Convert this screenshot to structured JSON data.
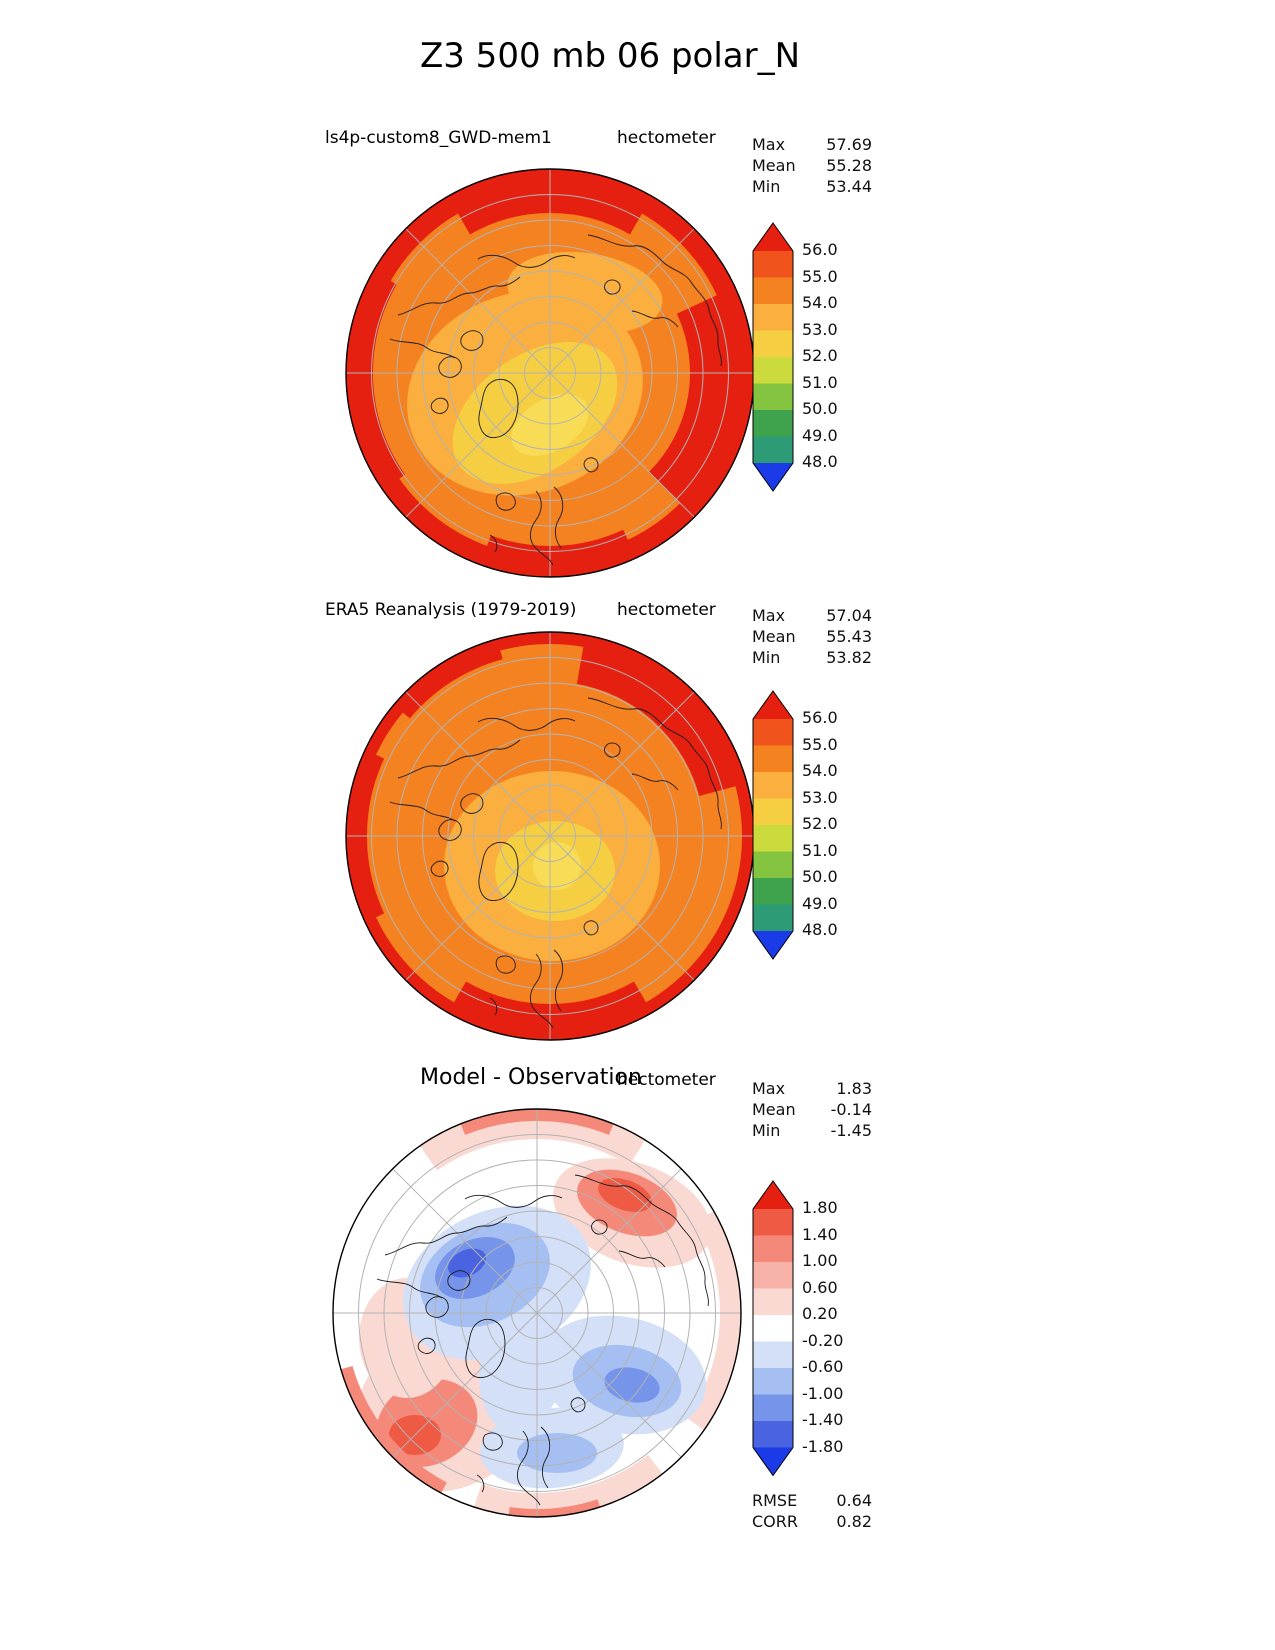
{
  "title": "Z3 500 mb 06 polar_N",
  "panels": [
    {
      "title": "ls4p-custom8_GWD-mem1",
      "units": "hectometer",
      "stats": [
        {
          "label": "Max",
          "value": "57.69"
        },
        {
          "label": "Mean",
          "value": "55.28"
        },
        {
          "label": "Min",
          "value": "53.44"
        }
      ],
      "colorbar": {
        "ticks": [
          "56.0",
          "55.0",
          "54.0",
          "53.0",
          "52.0",
          "51.0",
          "50.0",
          "49.0",
          "48.0"
        ],
        "colors": [
          "#E62011",
          "#F0541C",
          "#F58220",
          "#FBAF3F",
          "#F5CE42",
          "#CBDB3E",
          "#84C441",
          "#3FA34D",
          "#2E9B77",
          "#1B3BE8"
        ]
      }
    },
    {
      "title": "ERA5 Reanalysis (1979-2019)",
      "units": "hectometer",
      "stats": [
        {
          "label": "Max",
          "value": "57.04"
        },
        {
          "label": "Mean",
          "value": "55.43"
        },
        {
          "label": "Min",
          "value": "53.82"
        }
      ],
      "colorbar": {
        "ticks": [
          "56.0",
          "55.0",
          "54.0",
          "53.0",
          "52.0",
          "51.0",
          "50.0",
          "49.0",
          "48.0"
        ],
        "colors": [
          "#E62011",
          "#F0541C",
          "#F58220",
          "#FBAF3F",
          "#F5CE42",
          "#CBDB3E",
          "#84C441",
          "#3FA34D",
          "#2E9B77",
          "#1B3BE8"
        ]
      }
    },
    {
      "title": "Model - Observation",
      "units": "hectometer",
      "stats": [
        {
          "label": "Max",
          "value": "1.83"
        },
        {
          "label": "Mean",
          "value": "-0.14"
        },
        {
          "label": "Min",
          "value": "-1.45"
        }
      ],
      "colorbar": {
        "ticks": [
          "1.80",
          "1.40",
          "1.00",
          "0.60",
          "0.20",
          "-0.20",
          "-0.60",
          "-1.00",
          "-1.40",
          "-1.80"
        ],
        "colors": [
          "#E62011",
          "#EF5A44",
          "#F4897A",
          "#F8B3A8",
          "#FBD9D3",
          "#FFFFFF",
          "#D3E0F8",
          "#A6BFF2",
          "#7694EA",
          "#4A63E0",
          "#1B3BE8"
        ]
      },
      "metrics": [
        {
          "label": "RMSE",
          "value": "0.64"
        },
        {
          "label": "CORR",
          "value": "0.82"
        }
      ]
    }
  ],
  "chart_data": [
    {
      "type": "heatmap",
      "title": "ls4p-custom8_GWD-mem1",
      "figure_title": "Z3 500 mb 06 polar_N",
      "projection": "polar_N",
      "units": "hectometer",
      "max": 57.69,
      "mean": 55.28,
      "min": 53.44,
      "contour_levels": [
        48.0,
        49.0,
        50.0,
        51.0,
        52.0,
        53.0,
        54.0,
        55.0,
        56.0
      ],
      "legend_position": "right"
    },
    {
      "type": "heatmap",
      "title": "ERA5 Reanalysis (1979-2019)",
      "figure_title": "Z3 500 mb 06 polar_N",
      "projection": "polar_N",
      "units": "hectometer",
      "max": 57.04,
      "mean": 55.43,
      "min": 53.82,
      "contour_levels": [
        48.0,
        49.0,
        50.0,
        51.0,
        52.0,
        53.0,
        54.0,
        55.0,
        56.0
      ],
      "legend_position": "right"
    },
    {
      "type": "heatmap",
      "title": "Model - Observation",
      "figure_title": "Z3 500 mb 06 polar_N",
      "projection": "polar_N",
      "units": "hectometer",
      "max": 1.83,
      "mean": -0.14,
      "min": -1.45,
      "contour_levels": [
        -1.8,
        -1.4,
        -1.0,
        -0.6,
        -0.2,
        0.2,
        0.6,
        1.0,
        1.4,
        1.8
      ],
      "rmse": 0.64,
      "corr": 0.82,
      "legend_position": "right"
    }
  ]
}
